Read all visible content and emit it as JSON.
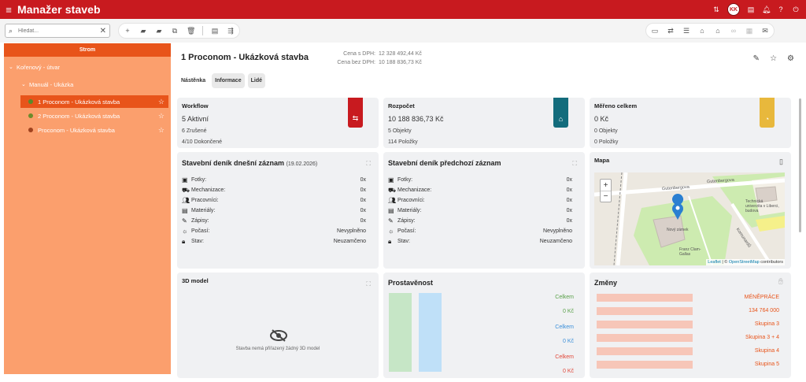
{
  "app": {
    "title": "Manažer staveb",
    "user_initials": "KK"
  },
  "search": {
    "placeholder": "Hledat..."
  },
  "sidebar": {
    "header": "Strom",
    "nodes": [
      {
        "label": "Kořenový - útvar",
        "level": 0,
        "expanded": true
      },
      {
        "label": "Manuál - Ukázka",
        "level": 1,
        "expanded": true
      },
      {
        "label": "1 Proconom - Ukázková stavba",
        "level": 2,
        "selected": true,
        "dot_color": "#5a8a2a"
      },
      {
        "label": "2 Proconom - Ukázková stavba",
        "level": 2,
        "dot_color": "#6c8b2b"
      },
      {
        "label": "Proconom - Ukázková stavba",
        "level": 2,
        "dot_color": "#a0421e"
      }
    ]
  },
  "project": {
    "title": "1 Proconom - Ukázková stavba",
    "price_vat_label": "Cena s DPH:",
    "price_vat": "12 328 492,44 Kč",
    "price_novat_label": "Cena bez DPH:",
    "price_novat": "10 188 836,73 Kč"
  },
  "tabs": [
    "Nástěnka",
    "Informace",
    "Lidé"
  ],
  "cards": {
    "workflow": {
      "title": "Workflow",
      "big": "5 Aktivní",
      "line1": "6 Zrušené",
      "line2": "4/10 Dokončené",
      "color": "#c81a1f"
    },
    "budget": {
      "title": "Rozpočet",
      "big": "10 188 836,73 Kč",
      "line1": "5 Objekty",
      "line2": "114 Položky",
      "color": "#136c7c"
    },
    "measured": {
      "title": "Měřeno celkem",
      "big": "0 Kč",
      "line1": "0 Objekty",
      "line2": "0 Položky",
      "color": "#e8b83c"
    }
  },
  "diary_today": {
    "title": "Stavební deník dnešní záznam",
    "date": "(19.02.2026)",
    "rows": [
      {
        "label": "Fotky:",
        "value": "0x",
        "icon": "image-icon"
      },
      {
        "label": "Mechanizace:",
        "value": "0x",
        "icon": "truck-icon"
      },
      {
        "label": "Pracovníci:",
        "value": "0x",
        "icon": "workers-icon"
      },
      {
        "label": "Materiály:",
        "value": "0x",
        "icon": "archive-icon"
      },
      {
        "label": "Zápisy:",
        "value": "0x",
        "icon": "pencil-icon"
      },
      {
        "label": "Počasí:",
        "value": "Nevyplněno",
        "icon": "sun-icon"
      },
      {
        "label": "Stav:",
        "value": "Neuzamčeno",
        "icon": "lock-icon"
      }
    ]
  },
  "diary_prev": {
    "title": "Stavební deník předchozí záznam",
    "rows": [
      {
        "label": "Fotky:",
        "value": "0x",
        "icon": "image-icon"
      },
      {
        "label": "Mechanizace:",
        "value": "0x",
        "icon": "truck-icon"
      },
      {
        "label": "Pracovníci:",
        "value": "0x",
        "icon": "workers-icon"
      },
      {
        "label": "Materiály:",
        "value": "0x",
        "icon": "archive-icon"
      },
      {
        "label": "Zápisy:",
        "value": "0x",
        "icon": "pencil-icon"
      },
      {
        "label": "Počasí:",
        "value": "Nevyplněno",
        "icon": "sun-icon"
      },
      {
        "label": "Stav:",
        "value": "Neuzamčeno",
        "icon": "lock-icon"
      }
    ]
  },
  "map": {
    "title": "Mapa",
    "streets": [
      "Gutenbergova",
      "Gutenbergova",
      "Komunardů"
    ],
    "poi": [
      "Technická univerzita v Liberci, budova",
      "Nový zámek",
      "Franz Clam-Gallas"
    ],
    "attribution_leaflet": "Leaflet",
    "attribution_sep": "| ©",
    "attribution_osm": "OpenStreetMap",
    "attribution_tail": "contributors",
    "zoom_in": "+",
    "zoom_out": "−"
  },
  "model3d": {
    "title": "3D model",
    "empty_text": "Stavba nemá přiřazený žádný 3D model"
  },
  "prostavenost": {
    "title": "Prostavěnost",
    "labels": [
      {
        "text": "Celkem",
        "color": "#5aa14a"
      },
      {
        "text": "0 Kč",
        "color": "#5aa14a"
      },
      {
        "text": "Celkem",
        "color": "#3b8fd9"
      },
      {
        "text": "0 Kč",
        "color": "#3b8fd9"
      },
      {
        "text": "Celkem",
        "color": "#e0483a"
      },
      {
        "text": "0 Kč",
        "color": "#e0483a"
      }
    ],
    "bar_colors": [
      "#c6e6c6",
      "#bfe0f8"
    ]
  },
  "changes": {
    "title": "Změny",
    "rows": [
      "MÉNĚPRÁCE",
      "134 764 000",
      "Skupina 3",
      "Skupina 3 + 4",
      "Skupina 4",
      "Skupina 5"
    ]
  }
}
